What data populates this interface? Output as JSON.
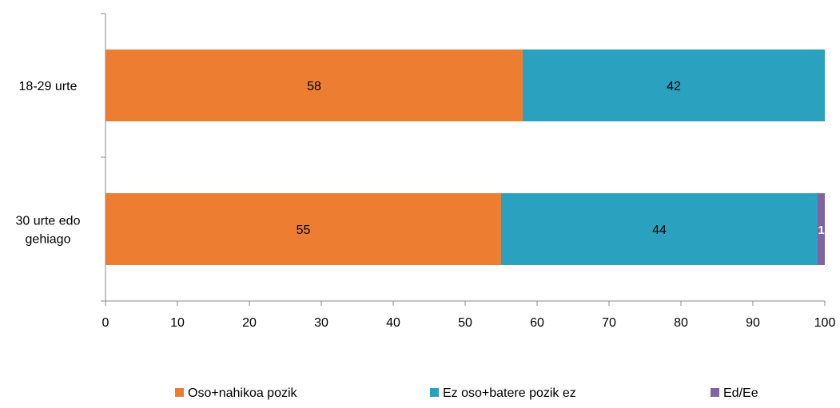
{
  "chart_data": {
    "type": "bar",
    "orientation": "horizontal",
    "stacked": true,
    "categories": [
      "18-29 urte",
      "30 urte edo gehiago"
    ],
    "series": [
      {
        "name": "Oso+nahikoa pozik",
        "values": [
          58,
          55
        ],
        "color": "#ED7D31"
      },
      {
        "name": "Ez oso+batere pozik ez",
        "values": [
          42,
          44
        ],
        "color": "#2AA1BF"
      },
      {
        "name": "Ed/Ee",
        "values": [
          0,
          1
        ],
        "color": "#8064A2"
      }
    ],
    "data_labels": [
      [
        "58",
        "55"
      ],
      [
        "42",
        "44"
      ],
      [
        "",
        "1"
      ]
    ],
    "xlim": [
      0,
      100
    ],
    "xticks": [
      "0",
      "10",
      "20",
      "30",
      "40",
      "50",
      "60",
      "70",
      "80",
      "90",
      "100"
    ],
    "grid": false,
    "legend_position": "bottom"
  }
}
